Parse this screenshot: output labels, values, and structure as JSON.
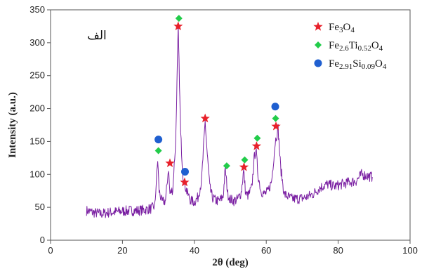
{
  "chart_data": {
    "type": "line",
    "panel_label": "الف",
    "xlabel": "2θ (deg)",
    "ylabel": "Intensity (a.u.)",
    "xlim": [
      0,
      100
    ],
    "ylim": [
      0,
      350
    ],
    "xticks": [
      "0",
      "20",
      "40",
      "60",
      "80",
      "100"
    ],
    "yticks": [
      "0",
      "50",
      "100",
      "150",
      "200",
      "250",
      "300",
      "350"
    ],
    "grid": false,
    "legend_position": "top-right",
    "line_color": "#7a1fa2",
    "series": [
      {
        "kind": "line",
        "color": "#7a1fa2",
        "x": [
          10,
          12,
          14,
          16,
          18,
          20,
          22,
          24,
          26,
          28,
          29,
          29.8,
          30.2,
          31,
          32,
          32.8,
          33.2,
          34,
          34.8,
          35.5,
          36.2,
          36.8,
          37.3,
          38,
          39,
          40,
          41,
          42,
          43,
          43.6,
          44.3,
          45,
          46,
          47,
          48,
          48.6,
          49.3,
          50,
          51,
          52,
          53,
          53.7,
          54.3,
          55,
          56,
          56.6,
          57.1,
          57.7,
          58.5,
          59.5,
          60.5,
          61.5,
          62.5,
          63.3,
          64,
          65,
          67,
          69,
          71,
          73,
          75,
          77,
          79,
          81,
          83,
          85,
          86.5,
          88,
          89.5
        ],
        "values": [
          45,
          42,
          40,
          42,
          43,
          44,
          45,
          45,
          46,
          48,
          52,
          122,
          75,
          58,
          60,
          110,
          70,
          78,
          150,
          322,
          160,
          100,
          85,
          72,
          60,
          58,
          65,
          90,
          180,
          130,
          80,
          65,
          60,
          60,
          66,
          108,
          70,
          62,
          60,
          62,
          72,
          105,
          70,
          68,
          80,
          122,
          140,
          100,
          75,
          70,
          74,
          90,
          150,
          170,
          110,
          70,
          63,
          63,
          65,
          70,
          80,
          85,
          82,
          85,
          88,
          90,
          100,
          98,
          96
        ]
      }
    ],
    "markers": [
      {
        "legend_index": 0,
        "points": [
          [
            35.5,
            325
          ],
          [
            43.0,
            185
          ],
          [
            33.2,
            117
          ],
          [
            37.3,
            88
          ],
          [
            53.8,
            111
          ],
          [
            57.3,
            143
          ],
          [
            62.7,
            173
          ]
        ]
      },
      {
        "legend_index": 1,
        "points": [
          [
            35.7,
            337
          ],
          [
            30.0,
            136
          ],
          [
            49.0,
            113
          ],
          [
            54.0,
            122
          ],
          [
            57.5,
            155
          ],
          [
            62.6,
            185
          ]
        ]
      },
      {
        "legend_index": 2,
        "points": [
          [
            30.0,
            153
          ],
          [
            37.4,
            104
          ],
          [
            62.5,
            203
          ]
        ]
      }
    ],
    "legend": [
      {
        "shape": "star",
        "color": "#e8202a",
        "base1": "Fe",
        "sub1": "3",
        "base2": "O",
        "sub2": "4",
        "base3": "",
        "sub3": ""
      },
      {
        "shape": "diamond",
        "color": "#22cc4a",
        "base1": "Fe",
        "sub1": "2.6",
        "base2": "Ti",
        "sub2": "0.52",
        "base3": "O",
        "sub3": "4"
      },
      {
        "shape": "circle",
        "color": "#1f5fd0",
        "base1": "Fe",
        "sub1": "2.91",
        "base2": "Si",
        "sub2": "0.09",
        "base3": "O",
        "sub3": "4"
      }
    ]
  }
}
